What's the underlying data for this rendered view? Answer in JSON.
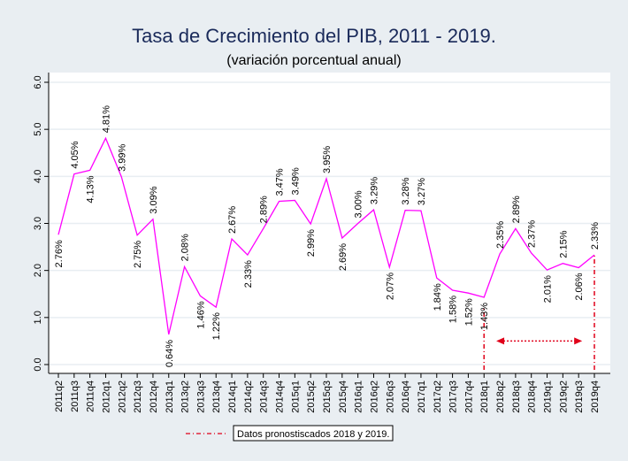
{
  "chart_data": {
    "type": "line",
    "title": "Tasa de Crecimiento del PIB, 2011 - 2019.",
    "subtitle": "(variación porcentual anual)",
    "xlabel": "",
    "ylabel": "",
    "ylim": [
      0,
      6
    ],
    "yticks": [
      "0.0",
      "1.0",
      "2.0",
      "3.0",
      "4.0",
      "5.0",
      "6.0"
    ],
    "grid": true,
    "line_color": "#ff00ff",
    "forecast_color": "#e0001a",
    "categories": [
      "2011q2",
      "2011q3",
      "2011q4",
      "2012q1",
      "2012q2",
      "2012q3",
      "2012q4",
      "2013q1",
      "2013q2",
      "2013q3",
      "2013q4",
      "2014q1",
      "2014q2",
      "2014q3",
      "2014q4",
      "2015q1",
      "2015q2",
      "2015q3",
      "2015q4",
      "2016q1",
      "2016q2",
      "2016q3",
      "2016q4",
      "2017q1",
      "2017q2",
      "2017q3",
      "2017q4",
      "2018q1",
      "2018q2",
      "2018q3",
      "2018q4",
      "2019q1",
      "2019q2",
      "2019q3",
      "2019q4"
    ],
    "values": [
      2.76,
      4.05,
      4.13,
      4.81,
      3.99,
      2.75,
      3.09,
      0.64,
      2.08,
      1.46,
      1.22,
      2.67,
      2.33,
      2.89,
      3.47,
      3.49,
      2.99,
      3.95,
      2.69,
      3.0,
      3.29,
      2.07,
      3.28,
      3.27,
      1.84,
      1.58,
      1.52,
      1.43,
      2.35,
      2.89,
      2.37,
      2.01,
      2.15,
      2.06,
      2.33
    ],
    "labels": [
      "2.76%",
      "4.05%",
      "4.13%",
      "4.81%",
      "3.99%",
      "2.75%",
      "3.09%",
      "0.64%",
      "2.08%",
      "1.46%",
      "1.22%",
      "2.67%",
      "2.33%",
      "2.89%",
      "3.47%",
      "3.49%",
      "2.99%",
      "3.95%",
      "2.69%",
      "3.00%",
      "3.29%",
      "2.07%",
      "3.28%",
      "3.27%",
      "1.84%",
      "1.58%",
      "1.52%",
      "1.43%",
      "2.35%",
      "2.89%",
      "2.37%",
      "2.01%",
      "2.15%",
      "2.06%",
      "2.33%"
    ],
    "label_side": [
      "below",
      "above",
      "below",
      "above",
      "above",
      "below",
      "above",
      "below",
      "above",
      "below",
      "below",
      "above",
      "below",
      "above",
      "above",
      "above",
      "below",
      "above",
      "below",
      "above",
      "above",
      "below",
      "above",
      "above",
      "below",
      "below",
      "below",
      "below",
      "above",
      "above",
      "above",
      "below",
      "above",
      "below",
      "above"
    ],
    "forecast_range": [
      "2018q1",
      "2019q4"
    ],
    "legend": {
      "entry": "Datos pronostiscados 2018 y 2019.",
      "placement": "bottom"
    }
  }
}
